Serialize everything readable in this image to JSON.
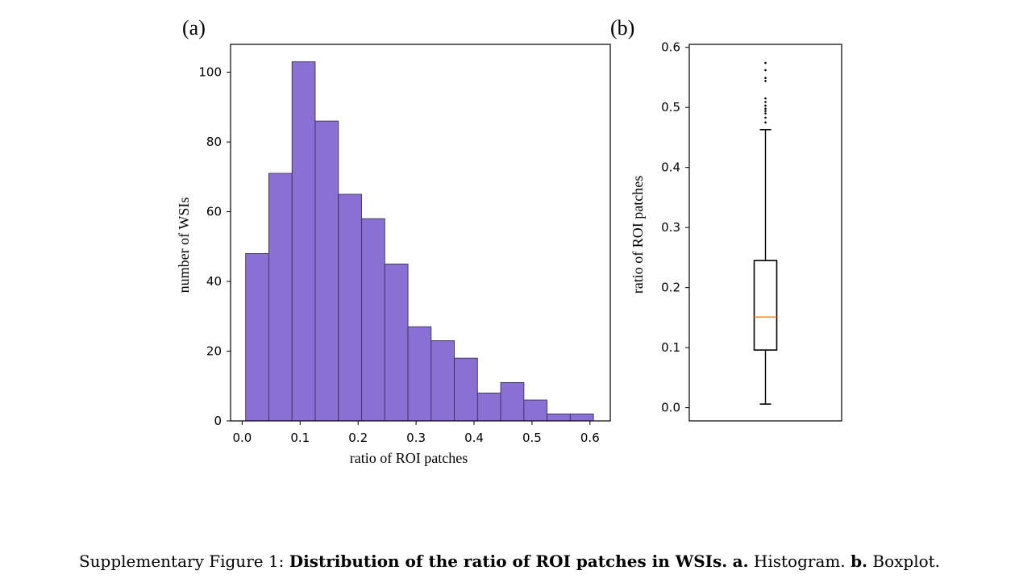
{
  "chart_data": [
    {
      "type": "bar",
      "subtype": "histogram",
      "panel_label": "(a)",
      "xlabel": "ratio of ROI patches",
      "ylabel": "number of WSIs",
      "bin_edges": [
        0.006,
        0.046,
        0.086,
        0.126,
        0.166,
        0.206,
        0.246,
        0.286,
        0.326,
        0.366,
        0.406,
        0.446,
        0.486,
        0.526,
        0.566,
        0.606
      ],
      "values": [
        48,
        71,
        103,
        86,
        65,
        58,
        45,
        27,
        23,
        18,
        8,
        11,
        6,
        2,
        2
      ],
      "xlim": [
        -0.02,
        0.635
      ],
      "ylim": [
        0,
        108
      ],
      "x_ticks": [
        0.0,
        0.1,
        0.2,
        0.3,
        0.4,
        0.5,
        0.6
      ],
      "x_tick_labels": [
        "0.0",
        "0.1",
        "0.2",
        "0.3",
        "0.4",
        "0.5",
        "0.6"
      ],
      "y_ticks": [
        0,
        20,
        40,
        60,
        80,
        100
      ],
      "y_tick_labels": [
        "0",
        "20",
        "40",
        "60",
        "80",
        "100"
      ],
      "bar_color": "#8a6fd4",
      "edge_color": "#3b3356"
    },
    {
      "type": "boxplot",
      "panel_label": "(b)",
      "ylabel": "ratio of ROI patches",
      "whisker_low": 0.006,
      "q1": 0.096,
      "median": 0.151,
      "q3": 0.245,
      "whisker_high": 0.463,
      "outliers": [
        0.475,
        0.483,
        0.49,
        0.494,
        0.498,
        0.503,
        0.509,
        0.515,
        0.544,
        0.549,
        0.562,
        0.574
      ],
      "ylim": [
        -0.022,
        0.605
      ],
      "y_ticks": [
        0.0,
        0.1,
        0.2,
        0.3,
        0.4,
        0.5,
        0.6
      ],
      "y_tick_labels": [
        "0.0",
        "0.1",
        "0.2",
        "0.3",
        "0.4",
        "0.5",
        "0.6"
      ],
      "median_color": "#ff7f0e",
      "box_color": "#000000"
    }
  ],
  "caption": {
    "prefix": "Supplementary Figure 1: ",
    "bold_title": "Distribution of the ratio of ROI patches in WSIs.",
    "a_label": "a.",
    "a_text": " Histogram. ",
    "b_label": "b.",
    "b_text": " Boxplot."
  }
}
